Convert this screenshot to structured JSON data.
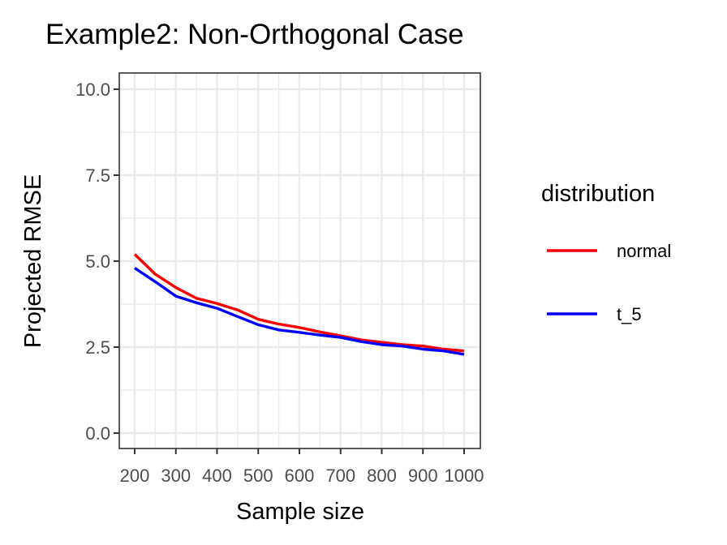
{
  "chart_data": {
    "type": "line",
    "title": "Example2: Non-Orthogonal Case",
    "xlabel": "Sample size",
    "ylabel": "Projected RMSE",
    "xlim": [
      200,
      1000
    ],
    "ylim": [
      0,
      10
    ],
    "x_ticks": [
      200,
      300,
      400,
      500,
      600,
      700,
      800,
      900,
      1000
    ],
    "x_tick_labels": [
      "200",
      "300",
      "400",
      "500",
      "600",
      "700",
      "800",
      "900",
      "1000"
    ],
    "y_ticks": [
      0,
      2.5,
      5,
      7.5,
      10
    ],
    "y_tick_labels": [
      "0.0",
      "2.5",
      "5.0",
      "7.5",
      "10.0"
    ],
    "grid": true,
    "legend": {
      "title": "distribution",
      "position": "right"
    },
    "x": [
      200,
      250,
      300,
      350,
      400,
      450,
      500,
      550,
      600,
      650,
      700,
      750,
      800,
      850,
      900,
      950,
      1000
    ],
    "series": [
      {
        "name": "normal",
        "color": "#ff0000",
        "values": [
          5.2,
          4.62,
          4.23,
          3.92,
          3.77,
          3.58,
          3.31,
          3.17,
          3.07,
          2.94,
          2.83,
          2.71,
          2.64,
          2.57,
          2.53,
          2.44,
          2.39
        ]
      },
      {
        "name": "t_5",
        "color": "#0000ff",
        "values": [
          4.8,
          4.4,
          3.98,
          3.79,
          3.63,
          3.39,
          3.15,
          3.0,
          2.93,
          2.85,
          2.78,
          2.66,
          2.57,
          2.53,
          2.44,
          2.39,
          2.29
        ]
      }
    ]
  }
}
